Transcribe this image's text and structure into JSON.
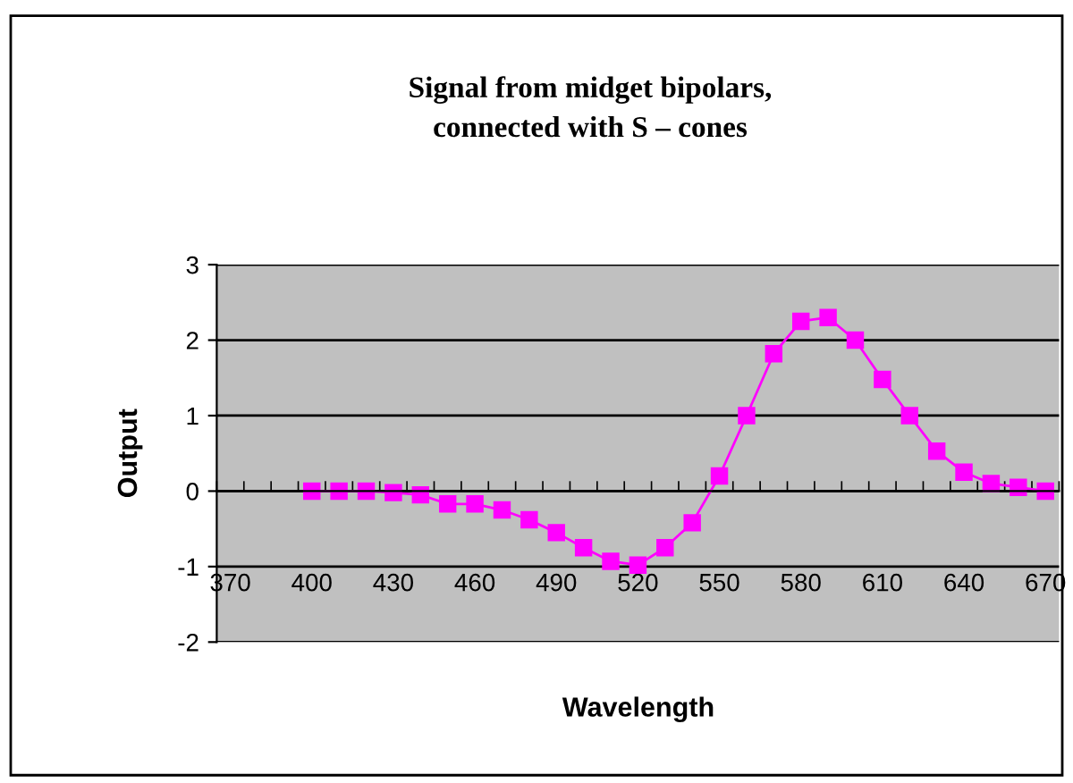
{
  "chart_data": {
    "type": "line",
    "title": "Signal from midget bipolars,\nconnected with S – cones",
    "xlabel": "Wavelength",
    "ylabel": "Output",
    "categories": [
      "370",
      null,
      null,
      "400",
      null,
      null,
      "430",
      null,
      null,
      "460",
      null,
      null,
      "490",
      null,
      null,
      "520",
      null,
      null,
      "550",
      null,
      null,
      "580",
      null,
      null,
      "610",
      null,
      null,
      "640",
      null,
      null,
      "670"
    ],
    "series": [
      {
        "color": "#ff00ff",
        "values": [
          null,
          null,
          null,
          0,
          0,
          0,
          -0.02,
          -0.05,
          -0.17,
          -0.17,
          -0.25,
          -0.38,
          -0.55,
          -0.75,
          -0.93,
          -0.98,
          -0.75,
          -0.42,
          0.2,
          1.0,
          1.82,
          2.25,
          2.3,
          2.0,
          1.48,
          1.0,
          0.53,
          0.25,
          0.1,
          0.05,
          0.0
        ]
      }
    ],
    "ylim": [
      -2,
      3
    ],
    "yticks": [
      -2,
      -1,
      0,
      1,
      2,
      3
    ],
    "grid": "y",
    "marker": "square",
    "line_style": "solid"
  }
}
